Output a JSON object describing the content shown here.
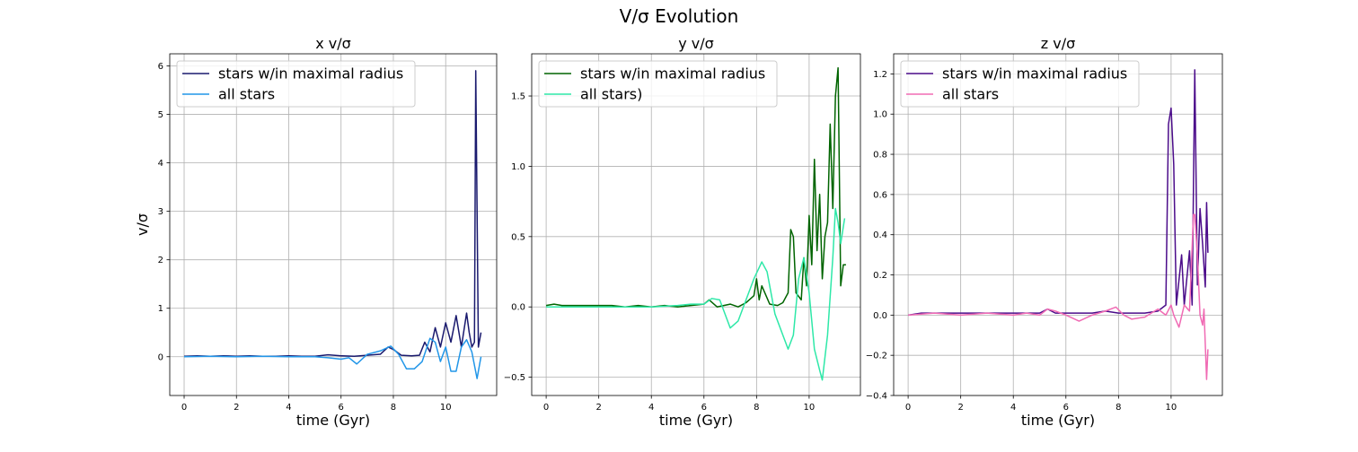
{
  "figure": {
    "suptitle": "V/σ Evolution"
  },
  "chart_data": [
    {
      "type": "line",
      "title": "x v/σ",
      "xlabel": "time (Gyr)",
      "ylabel": "v/σ",
      "xlim": [
        -0.55,
        11.95
      ],
      "ylim": [
        -0.8,
        6.25
      ],
      "xticks": [
        0,
        2,
        4,
        6,
        8,
        10
      ],
      "yticks": [
        0,
        1,
        2,
        3,
        4,
        5,
        6
      ],
      "xtick_labels": [
        "0",
        "2",
        "4",
        "6",
        "8",
        "10"
      ],
      "ytick_labels": [
        "0",
        "1",
        "2",
        "3",
        "4",
        "5",
        "6"
      ],
      "grid": true,
      "legend_position": "top-left",
      "series": [
        {
          "name": "stars w/in maximal radius",
          "color": "#1a1a6e",
          "points": [
            [
              0,
              0.01
            ],
            [
              0.5,
              0.02
            ],
            [
              1,
              0.01
            ],
            [
              1.5,
              0.02
            ],
            [
              2,
              0.01
            ],
            [
              2.5,
              0.02
            ],
            [
              3,
              0.01
            ],
            [
              3.5,
              0.01
            ],
            [
              4,
              0.02
            ],
            [
              4.5,
              0.01
            ],
            [
              5,
              0.01
            ],
            [
              5.5,
              0.04
            ],
            [
              6,
              0.02
            ],
            [
              6.5,
              0.01
            ],
            [
              7,
              0.03
            ],
            [
              7.5,
              0.05
            ],
            [
              7.8,
              0.2
            ],
            [
              8,
              0.15
            ],
            [
              8.3,
              0.03
            ],
            [
              8.7,
              0.02
            ],
            [
              9,
              0.03
            ],
            [
              9.2,
              0.3
            ],
            [
              9.4,
              0.1
            ],
            [
              9.6,
              0.6
            ],
            [
              9.8,
              0.2
            ],
            [
              10,
              0.7
            ],
            [
              10.2,
              0.3
            ],
            [
              10.4,
              0.85
            ],
            [
              10.6,
              0.2
            ],
            [
              10.8,
              0.9
            ],
            [
              10.9,
              0.5
            ],
            [
              11,
              0.2
            ],
            [
              11.1,
              0.3
            ],
            [
              11.15,
              5.9
            ],
            [
              11.25,
              0.2
            ],
            [
              11.35,
              0.5
            ]
          ]
        },
        {
          "name": "all stars",
          "color": "#2196e8",
          "points": [
            [
              0,
              0.0
            ],
            [
              1,
              0.01
            ],
            [
              2,
              0.0
            ],
            [
              3,
              0.01
            ],
            [
              4,
              0.0
            ],
            [
              5,
              0.0
            ],
            [
              5.5,
              -0.02
            ],
            [
              6,
              -0.05
            ],
            [
              6.3,
              -0.02
            ],
            [
              6.6,
              -0.15
            ],
            [
              7,
              0.05
            ],
            [
              7.5,
              0.12
            ],
            [
              7.9,
              0.22
            ],
            [
              8.2,
              0.05
            ],
            [
              8.5,
              -0.25
            ],
            [
              8.8,
              -0.25
            ],
            [
              9.1,
              -0.1
            ],
            [
              9.4,
              0.38
            ],
            [
              9.6,
              0.3
            ],
            [
              9.8,
              -0.1
            ],
            [
              10,
              0.2
            ],
            [
              10.2,
              -0.3
            ],
            [
              10.4,
              -0.3
            ],
            [
              10.6,
              0.2
            ],
            [
              10.8,
              0.35
            ],
            [
              11,
              0.1
            ],
            [
              11.2,
              -0.45
            ],
            [
              11.35,
              0.0
            ]
          ]
        }
      ]
    },
    {
      "type": "line",
      "title": "y v/σ",
      "xlabel": "time (Gyr)",
      "ylabel": "",
      "xlim": [
        -0.55,
        11.95
      ],
      "ylim": [
        -0.63,
        1.8
      ],
      "xticks": [
        0,
        2,
        4,
        6,
        8,
        10
      ],
      "yticks": [
        -0.5,
        0.0,
        0.5,
        1.0,
        1.5
      ],
      "xtick_labels": [
        "0",
        "2",
        "4",
        "6",
        "8",
        "10"
      ],
      "ytick_labels": [
        "−0.5",
        "0.0",
        "0.5",
        "1.0",
        "1.5"
      ],
      "grid": true,
      "legend_position": "top-left",
      "series": [
        {
          "name": "stars w/in maximal radius",
          "color": "#006400",
          "points": [
            [
              0,
              0.01
            ],
            [
              0.3,
              0.02
            ],
            [
              0.6,
              0.01
            ],
            [
              1,
              0.01
            ],
            [
              1.5,
              0.01
            ],
            [
              2,
              0.01
            ],
            [
              2.5,
              0.01
            ],
            [
              3,
              0.0
            ],
            [
              3.5,
              0.01
            ],
            [
              4,
              0.0
            ],
            [
              4.5,
              0.01
            ],
            [
              5,
              0.0
            ],
            [
              5.5,
              0.01
            ],
            [
              6,
              0.02
            ],
            [
              6.2,
              0.05
            ],
            [
              6.5,
              0.0
            ],
            [
              7,
              0.02
            ],
            [
              7.3,
              0.0
            ],
            [
              7.6,
              0.03
            ],
            [
              7.9,
              0.08
            ],
            [
              8,
              0.2
            ],
            [
              8.1,
              0.05
            ],
            [
              8.2,
              0.15
            ],
            [
              8.5,
              0.02
            ],
            [
              8.8,
              0.01
            ],
            [
              9,
              0.03
            ],
            [
              9.2,
              0.1
            ],
            [
              9.3,
              0.55
            ],
            [
              9.4,
              0.5
            ],
            [
              9.5,
              0.1
            ],
            [
              9.7,
              0.05
            ],
            [
              9.8,
              0.35
            ],
            [
              9.9,
              0.15
            ],
            [
              10,
              0.65
            ],
            [
              10.1,
              0.3
            ],
            [
              10.2,
              1.05
            ],
            [
              10.3,
              0.4
            ],
            [
              10.4,
              0.8
            ],
            [
              10.5,
              0.2
            ],
            [
              10.6,
              0.5
            ],
            [
              10.7,
              0.6
            ],
            [
              10.8,
              1.3
            ],
            [
              10.9,
              0.7
            ],
            [
              11,
              1.5
            ],
            [
              11.1,
              1.7
            ],
            [
              11.2,
              0.15
            ],
            [
              11.3,
              0.3
            ],
            [
              11.4,
              0.3
            ]
          ]
        },
        {
          "name": "all stars)",
          "color": "#2ee8a8",
          "points": [
            [
              0,
              0.0
            ],
            [
              1,
              0.0
            ],
            [
              2,
              0.0
            ],
            [
              3,
              0.0
            ],
            [
              4,
              0.0
            ],
            [
              5,
              0.01
            ],
            [
              5.5,
              0.02
            ],
            [
              6,
              0.02
            ],
            [
              6.3,
              0.06
            ],
            [
              6.6,
              0.05
            ],
            [
              7,
              -0.15
            ],
            [
              7.3,
              -0.1
            ],
            [
              7.6,
              0.05
            ],
            [
              7.9,
              0.2
            ],
            [
              8.2,
              0.32
            ],
            [
              8.4,
              0.25
            ],
            [
              8.7,
              -0.05
            ],
            [
              9,
              -0.2
            ],
            [
              9.2,
              -0.3
            ],
            [
              9.4,
              -0.2
            ],
            [
              9.6,
              0.2
            ],
            [
              9.8,
              0.35
            ],
            [
              10,
              0.1
            ],
            [
              10.2,
              -0.3
            ],
            [
              10.4,
              -0.45
            ],
            [
              10.5,
              -0.52
            ],
            [
              10.7,
              -0.2
            ],
            [
              10.9,
              0.35
            ],
            [
              11,
              0.7
            ],
            [
              11.1,
              0.6
            ],
            [
              11.2,
              0.45
            ],
            [
              11.35,
              0.63
            ]
          ]
        }
      ]
    },
    {
      "type": "line",
      "title": "z v/σ",
      "xlabel": "time (Gyr)",
      "ylabel": "",
      "xlim": [
        -0.55,
        11.95
      ],
      "ylim": [
        -0.4,
        1.3
      ],
      "xticks": [
        0,
        2,
        4,
        6,
        8,
        10
      ],
      "yticks": [
        -0.4,
        -0.2,
        0.0,
        0.2,
        0.4,
        0.6,
        0.8,
        1.0,
        1.2
      ],
      "xtick_labels": [
        "0",
        "2",
        "4",
        "6",
        "8",
        "10"
      ],
      "ytick_labels": [
        "−0.4",
        "−0.2",
        "0.0",
        "0.2",
        "0.4",
        "0.6",
        "0.8",
        "1.0",
        "1.2"
      ],
      "grid": true,
      "legend_position": "top-left",
      "series": [
        {
          "name": "stars w/in maximal radius",
          "color": "#4b0c8a",
          "points": [
            [
              0,
              0.0
            ],
            [
              0.5,
              0.01
            ],
            [
              1,
              0.01
            ],
            [
              1.5,
              0.01
            ],
            [
              2,
              0.01
            ],
            [
              2.5,
              0.01
            ],
            [
              3,
              0.01
            ],
            [
              3.5,
              0.01
            ],
            [
              4,
              0.01
            ],
            [
              4.5,
              0.01
            ],
            [
              5,
              0.01
            ],
            [
              5.3,
              0.03
            ],
            [
              5.6,
              0.01
            ],
            [
              6,
              0.01
            ],
            [
              6.5,
              0.01
            ],
            [
              7,
              0.01
            ],
            [
              7.5,
              0.02
            ],
            [
              8,
              0.01
            ],
            [
              8.5,
              0.01
            ],
            [
              9,
              0.01
            ],
            [
              9.5,
              0.02
            ],
            [
              9.8,
              0.05
            ],
            [
              9.9,
              0.95
            ],
            [
              10,
              1.03
            ],
            [
              10.1,
              0.75
            ],
            [
              10.2,
              0.05
            ],
            [
              10.4,
              0.3
            ],
            [
              10.5,
              0.05
            ],
            [
              10.7,
              0.32
            ],
            [
              10.8,
              0.05
            ],
            [
              10.9,
              1.22
            ],
            [
              11,
              0.15
            ],
            [
              11.1,
              0.53
            ],
            [
              11.2,
              0.35
            ],
            [
              11.3,
              0.14
            ],
            [
              11.35,
              0.56
            ],
            [
              11.4,
              0.31
            ]
          ]
        },
        {
          "name": "all stars",
          "color": "#f06bb4",
          "points": [
            [
              0,
              0.0
            ],
            [
              1,
              0.01
            ],
            [
              2,
              0.0
            ],
            [
              3,
              0.01
            ],
            [
              4,
              0.0
            ],
            [
              4.5,
              0.01
            ],
            [
              5,
              0.0
            ],
            [
              5.3,
              0.03
            ],
            [
              5.6,
              0.02
            ],
            [
              6,
              0.0
            ],
            [
              6.5,
              -0.03
            ],
            [
              7,
              0.0
            ],
            [
              7.5,
              0.02
            ],
            [
              7.9,
              0.04
            ],
            [
              8.2,
              0.0
            ],
            [
              8.5,
              -0.02
            ],
            [
              9,
              -0.01
            ],
            [
              9.5,
              0.03
            ],
            [
              9.8,
              0.0
            ],
            [
              10,
              0.05
            ],
            [
              10.1,
              0.0
            ],
            [
              10.3,
              -0.06
            ],
            [
              10.5,
              0.05
            ],
            [
              10.7,
              0.02
            ],
            [
              10.85,
              0.5
            ],
            [
              10.9,
              0.5
            ],
            [
              11,
              0.3
            ],
            [
              11.1,
              0.0
            ],
            [
              11.2,
              -0.05
            ],
            [
              11.25,
              0.03
            ],
            [
              11.35,
              -0.32
            ],
            [
              11.4,
              -0.17
            ]
          ]
        }
      ]
    }
  ]
}
